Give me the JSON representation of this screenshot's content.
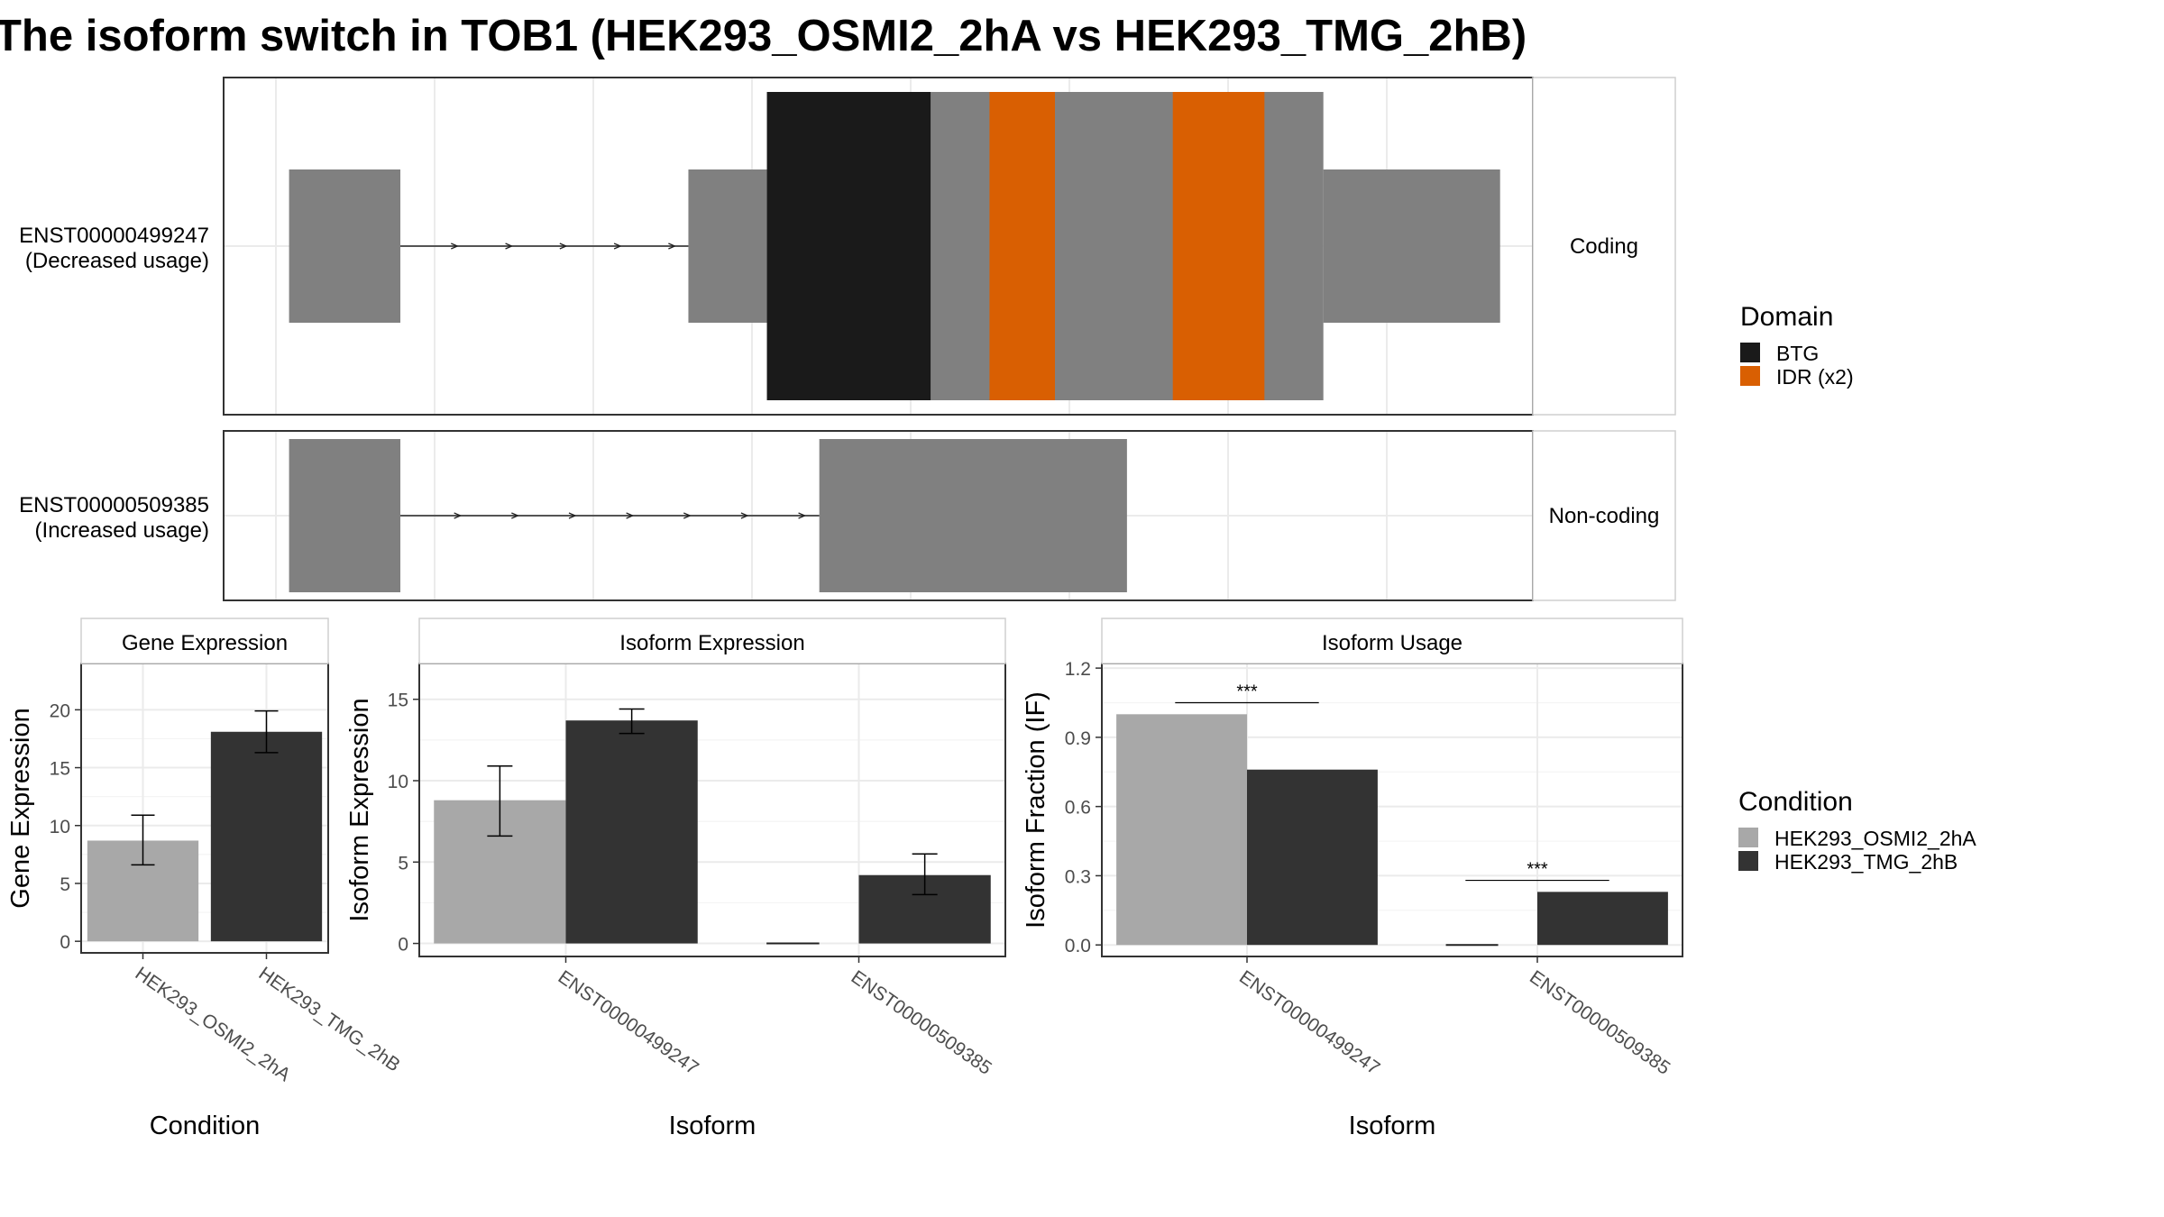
{
  "title": "The isoform switch in TOB1 (HEK293_OSMI2_2hA vs HEK293_TMG_2hB)",
  "colors": {
    "exon": "#808080",
    "cond1": "#a8a8a8",
    "cond2": "#333333",
    "grid": "#ebebeb",
    "strip_bg": "#ffffff",
    "border": "#333333"
  },
  "transcripts": [
    {
      "id": "ENST00000499247",
      "usage": "(Decreased usage)",
      "type": "Coding",
      "segments": [
        {
          "start": 0.05,
          "end": 0.135,
          "cds": false
        },
        {
          "start": 0.355,
          "end": 0.415,
          "cds": false
        },
        {
          "start": 0.415,
          "end": 0.84,
          "cds": true
        },
        {
          "start": 0.84,
          "end": 0.975,
          "cds": false
        }
      ],
      "domains": [
        {
          "name": "BTG",
          "start": 0.415,
          "end": 0.54
        },
        {
          "name": "IDR",
          "start": 0.585,
          "end": 0.635
        },
        {
          "name": "IDR",
          "start": 0.725,
          "end": 0.795
        }
      ],
      "intron": [
        0.135,
        0.355
      ]
    },
    {
      "id": "ENST00000509385",
      "usage": "(Increased usage)",
      "type": "Non-coding",
      "segments": [
        {
          "start": 0.05,
          "end": 0.135,
          "cds": false
        },
        {
          "start": 0.455,
          "end": 0.69,
          "cds": false
        }
      ],
      "domains": [],
      "intron": [
        0.135,
        0.455
      ]
    }
  ],
  "domain_legend": {
    "title": "Domain",
    "items": [
      {
        "label": "BTG",
        "color": "#1a1a1a"
      },
      {
        "label": "IDR (x2)",
        "color": "#d95f02"
      }
    ]
  },
  "condition_legend": {
    "title": "Condition",
    "items": [
      {
        "label": "HEK293_OSMI2_2hA",
        "color": "#a8a8a8"
      },
      {
        "label": "HEK293_TMG_2hB",
        "color": "#333333"
      }
    ]
  },
  "chart_data": [
    {
      "type": "bar",
      "title": "Gene Expression",
      "xlabel": "Condition",
      "ylabel": "Gene Expression",
      "categories": [
        "HEK293_OSMI2_2hA",
        "HEK293_TMG_2hB"
      ],
      "series": [
        {
          "values": [
            8.7,
            18.1
          ],
          "errors": [
            [
              6.6,
              10.9
            ],
            [
              16.3,
              19.9
            ]
          ]
        }
      ],
      "ylim": [
        -1,
        24
      ],
      "yticks": [
        0,
        5,
        10,
        15,
        20
      ]
    },
    {
      "type": "bar",
      "title": "Isoform Expression",
      "xlabel": "Isoform",
      "ylabel": "Isoform Expression",
      "categories": [
        "ENST00000499247",
        "ENST00000509385"
      ],
      "series": [
        {
          "name": "HEK293_OSMI2_2hA",
          "values": [
            8.8,
            0.0
          ],
          "errors": [
            [
              6.6,
              10.9
            ],
            null
          ]
        },
        {
          "name": "HEK293_TMG_2hB",
          "values": [
            13.7,
            4.2
          ],
          "errors": [
            [
              12.9,
              14.4
            ],
            [
              3.0,
              5.5
            ]
          ]
        }
      ],
      "ylim": [
        -0.8,
        17.2
      ],
      "yticks": [
        0,
        5,
        10,
        15
      ]
    },
    {
      "type": "bar",
      "title": "Isoform Usage",
      "xlabel": "Isoform",
      "ylabel": "Isoform Fraction (IF)",
      "categories": [
        "ENST00000499247",
        "ENST00000509385"
      ],
      "series": [
        {
          "name": "HEK293_OSMI2_2hA",
          "values": [
            1.0,
            0.0
          ]
        },
        {
          "name": "HEK293_TMG_2hB",
          "values": [
            0.76,
            0.23
          ]
        }
      ],
      "significance": [
        {
          "category": 0,
          "label": "***",
          "y": 1.05
        },
        {
          "category": 1,
          "label": "***",
          "y": 0.28
        }
      ],
      "ylim": [
        -0.05,
        1.22
      ],
      "yticks": [
        0.0,
        0.3,
        0.6,
        0.9,
        1.2
      ],
      "ytick_labels": [
        "0.0",
        "0.3",
        "0.6",
        "0.9",
        "1.2"
      ]
    }
  ]
}
